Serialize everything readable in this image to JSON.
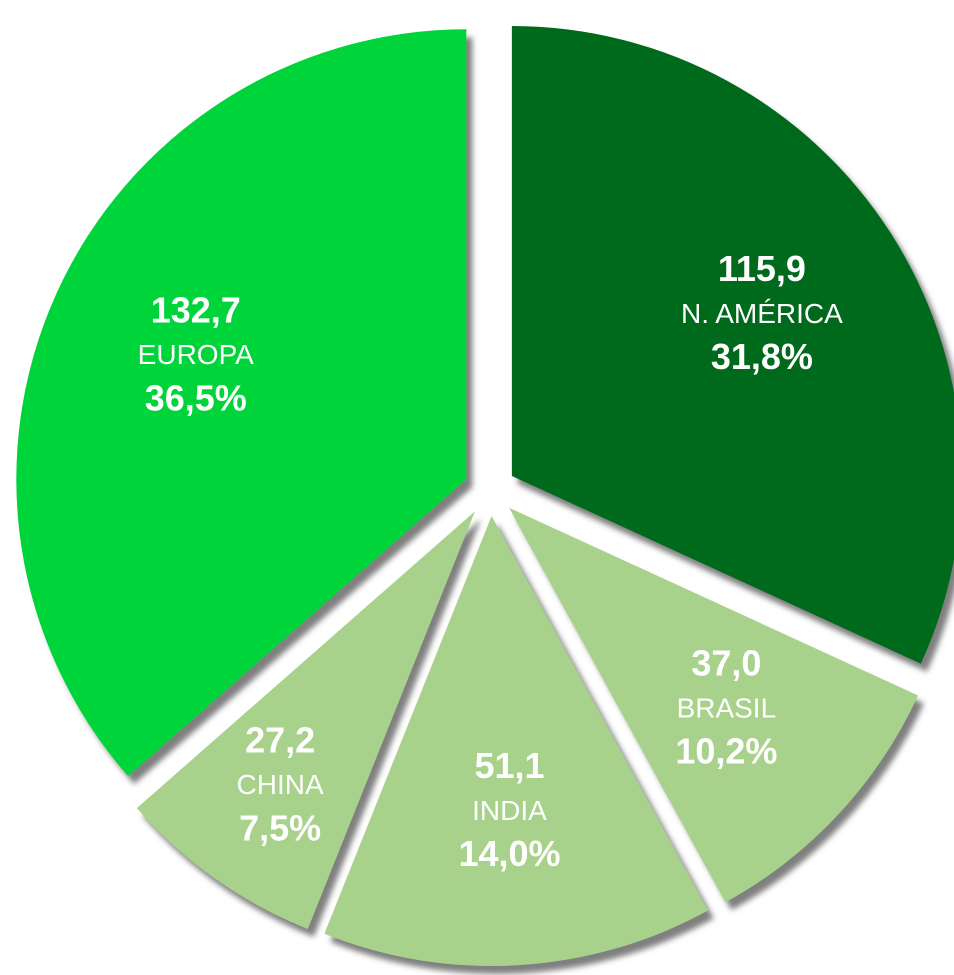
{
  "chart_data": {
    "type": "pie",
    "categories": [
      "N. AMÉRICA",
      "BRASIL",
      "INDIA",
      "CHINA",
      "EUROPA"
    ],
    "values": [
      115.9,
      37.0,
      51.1,
      27.2,
      132.7
    ],
    "value_labels": [
      "115,9",
      "37,0",
      "51,1",
      "27,2",
      "132,7"
    ],
    "percentages": [
      31.8,
      10.2,
      14.0,
      7.5,
      36.5
    ],
    "percentage_labels": [
      "31,8%",
      "10,2%",
      "14,0%",
      "7,5%",
      "36,5%"
    ],
    "colors": [
      "#006b1b",
      "#a8d18c",
      "#a8d18c",
      "#a8d18c",
      "#00d43a"
    ]
  }
}
